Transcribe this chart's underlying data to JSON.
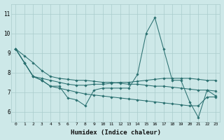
{
  "title": "",
  "xlabel": "Humidex (Indice chaleur)",
  "ylabel": "",
  "bg_color": "#cde8e8",
  "grid_color": "#aacccc",
  "line_color": "#2a7070",
  "xlim": [
    -0.5,
    23.5
  ],
  "ylim": [
    5.5,
    11.5
  ],
  "yticks": [
    6,
    7,
    8,
    9,
    10,
    11
  ],
  "xticks": [
    0,
    1,
    2,
    3,
    4,
    5,
    6,
    7,
    8,
    9,
    10,
    11,
    12,
    13,
    14,
    15,
    16,
    17,
    18,
    19,
    20,
    21,
    22,
    23
  ],
  "series": [
    [
      9.2,
      8.5,
      7.8,
      7.6,
      7.3,
      7.3,
      6.7,
      6.6,
      6.3,
      7.1,
      7.2,
      7.2,
      7.2,
      7.2,
      7.9,
      10.0,
      10.8,
      9.2,
      7.6,
      7.6,
      6.5,
      5.7,
      7.1,
      6.8
    ],
    [
      9.2,
      8.5,
      7.8,
      7.7,
      7.6,
      7.5,
      7.4,
      7.35,
      7.35,
      7.4,
      7.4,
      7.45,
      7.5,
      7.5,
      7.55,
      7.6,
      7.65,
      7.7,
      7.7,
      7.7,
      7.7,
      7.65,
      7.6,
      7.6
    ],
    [
      9.2,
      8.85,
      8.5,
      8.1,
      7.8,
      7.7,
      7.65,
      7.6,
      7.6,
      7.55,
      7.5,
      7.5,
      7.45,
      7.4,
      7.4,
      7.35,
      7.3,
      7.3,
      7.25,
      7.2,
      7.15,
      7.1,
      7.1,
      7.05
    ],
    [
      9.2,
      8.5,
      7.8,
      7.6,
      7.3,
      7.2,
      7.1,
      7.0,
      6.9,
      6.85,
      6.8,
      6.75,
      6.7,
      6.65,
      6.6,
      6.55,
      6.5,
      6.45,
      6.4,
      6.35,
      6.3,
      6.3,
      6.75,
      6.75
    ]
  ]
}
